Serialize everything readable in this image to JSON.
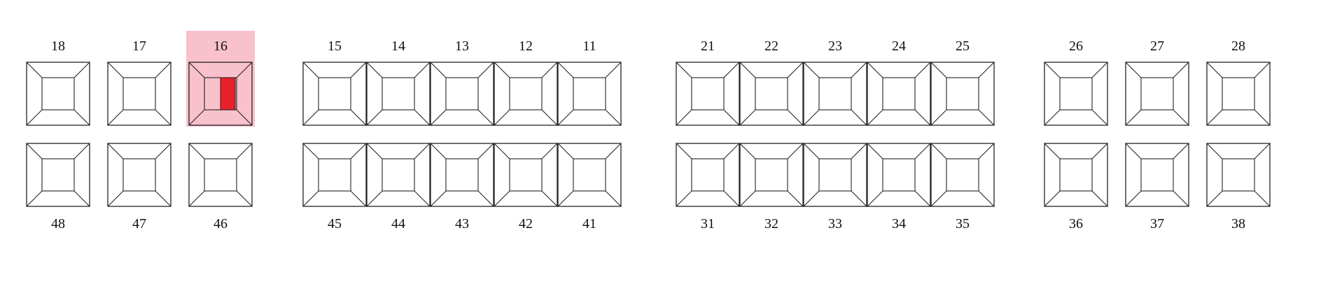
{
  "colors": {
    "stroke": "#222222",
    "selected_bg": "#f8c1cc",
    "marker": "#e8202a"
  },
  "selected_tooth": "16",
  "groups": [
    {
      "upper": [
        "18",
        "17",
        "16"
      ],
      "lower": [
        "48",
        "47",
        "46"
      ]
    },
    {
      "upper": [
        "15",
        "14",
        "13",
        "12",
        "11"
      ],
      "lower": [
        "45",
        "44",
        "43",
        "42",
        "41"
      ]
    },
    {
      "upper": [
        "21",
        "22",
        "23",
        "24",
        "25"
      ],
      "lower": [
        "31",
        "32",
        "33",
        "34",
        "35"
      ]
    },
    {
      "upper": [
        "26",
        "27",
        "28"
      ],
      "lower": [
        "36",
        "37",
        "38"
      ]
    }
  ]
}
